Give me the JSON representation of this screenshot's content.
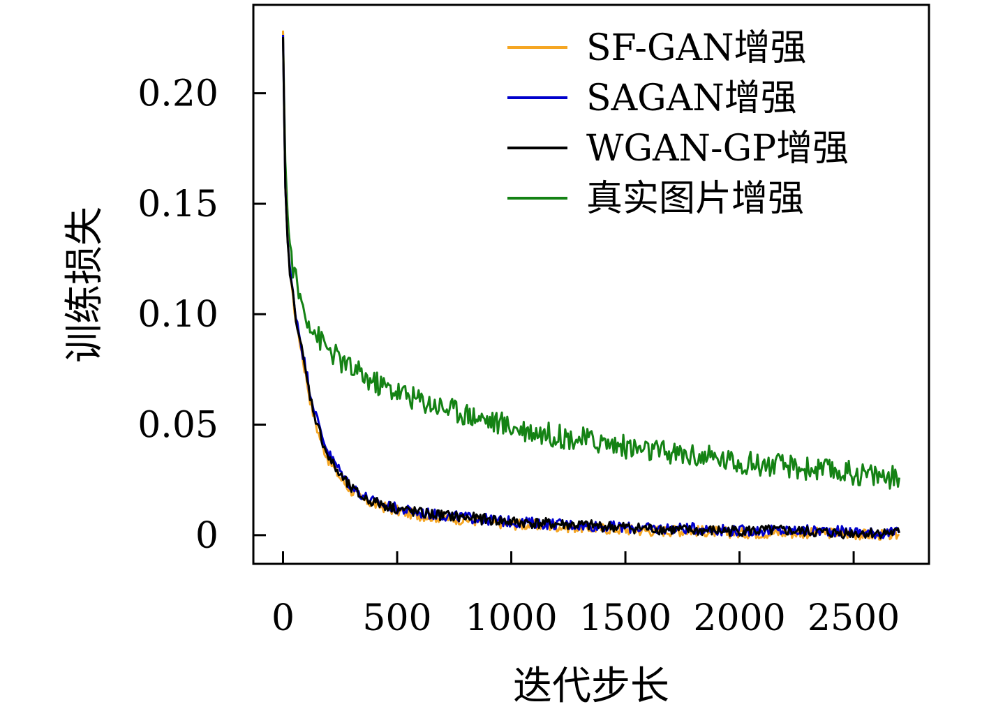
{
  "chart_data": {
    "type": "line",
    "title": "",
    "xlabel": "迭代步长",
    "ylabel": "训练损失",
    "xlim": [
      -130,
      2830
    ],
    "ylim": [
      -0.013,
      0.24
    ],
    "xticks": [
      0,
      500,
      1000,
      1500,
      2000,
      2500
    ],
    "xtick_labels": [
      "0",
      "500",
      "1000",
      "1500",
      "2000",
      "2500"
    ],
    "yticks": [
      0,
      0.05,
      0.1,
      0.15,
      0.2
    ],
    "ytick_labels": [
      "0",
      "0.05",
      "0.10",
      "0.15",
      "0.20"
    ],
    "grid": false,
    "legend_position": "top-right",
    "x": [
      0,
      10,
      20,
      30,
      50,
      75,
      100,
      125,
      150,
      175,
      200,
      250,
      300,
      350,
      400,
      500,
      600,
      700,
      800,
      900,
      1000,
      1200,
      1400,
      1600,
      1800,
      2000,
      2200,
      2400,
      2600,
      2700
    ],
    "series": [
      {
        "name": "SF-GAN增强",
        "color": "#f5a623",
        "values": [
          0.228,
          0.16,
          0.135,
          0.12,
          0.102,
          0.087,
          0.072,
          0.058,
          0.048,
          0.04,
          0.034,
          0.026,
          0.02,
          0.016,
          0.014,
          0.011,
          0.009,
          0.008,
          0.007,
          0.006,
          0.005,
          0.004,
          0.003,
          0.002,
          0.002,
          0.001,
          0.001,
          0.001,
          0.0,
          0.0
        ]
      },
      {
        "name": "SAGAN增强",
        "color": "#0000cc",
        "values": [
          0.226,
          0.158,
          0.134,
          0.12,
          0.104,
          0.089,
          0.075,
          0.062,
          0.052,
          0.044,
          0.037,
          0.029,
          0.022,
          0.018,
          0.015,
          0.012,
          0.01,
          0.009,
          0.008,
          0.007,
          0.006,
          0.005,
          0.004,
          0.003,
          0.003,
          0.002,
          0.002,
          0.002,
          0.001,
          0.001
        ]
      },
      {
        "name": "WGAN-GP增强",
        "color": "#000000",
        "values": [
          0.225,
          0.157,
          0.133,
          0.119,
          0.103,
          0.088,
          0.073,
          0.06,
          0.05,
          0.042,
          0.035,
          0.027,
          0.021,
          0.017,
          0.015,
          0.012,
          0.01,
          0.009,
          0.008,
          0.007,
          0.006,
          0.005,
          0.004,
          0.003,
          0.002,
          0.002,
          0.002,
          0.001,
          0.001,
          0.001
        ]
      },
      {
        "name": "真实图片增强",
        "color": "#148214",
        "values": [
          0.227,
          0.17,
          0.145,
          0.13,
          0.118,
          0.107,
          0.1,
          0.095,
          0.09,
          0.087,
          0.084,
          0.079,
          0.075,
          0.072,
          0.069,
          0.065,
          0.061,
          0.058,
          0.055,
          0.052,
          0.049,
          0.045,
          0.042,
          0.038,
          0.036,
          0.033,
          0.031,
          0.029,
          0.027,
          0.026
        ]
      }
    ]
  }
}
